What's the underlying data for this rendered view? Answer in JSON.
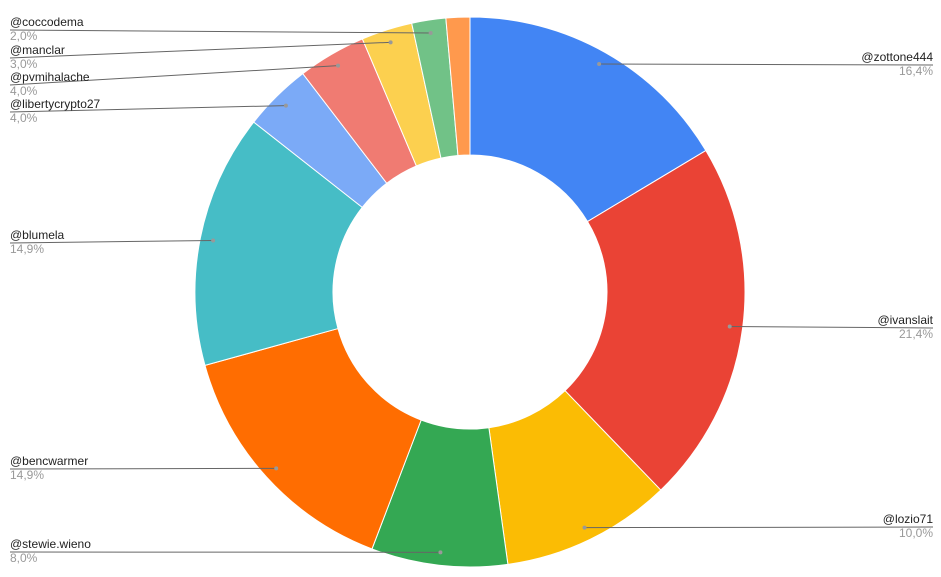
{
  "chart_data": {
    "type": "pie",
    "donut": true,
    "categories": [
      "@zottone444",
      "@ivanslait",
      "@lozio71",
      "@stewie.wieno",
      "@bencwarmer",
      "@blumela",
      "@libertycrypto27",
      "@pvmihalache",
      "@manclar",
      "@coccodema",
      null
    ],
    "values": [
      16.4,
      21.4,
      10.0,
      8.0,
      14.9,
      14.9,
      4.0,
      4.0,
      3.0,
      2.0,
      1.4
    ],
    "value_labels": [
      "16,4%",
      "21,4%",
      "10,0%",
      "8,0%",
      "14,9%",
      "14,9%",
      "4,0%",
      "4,0%",
      "3,0%",
      "2,0%",
      null
    ],
    "colors": [
      "#4285f4",
      "#ea4335",
      "#fbbc04",
      "#34a853",
      "#ff6d01",
      "#46bdc6",
      "#7baaf7",
      "#f07b72",
      "#fcd04f",
      "#71c287",
      "#ff994d"
    ]
  }
}
